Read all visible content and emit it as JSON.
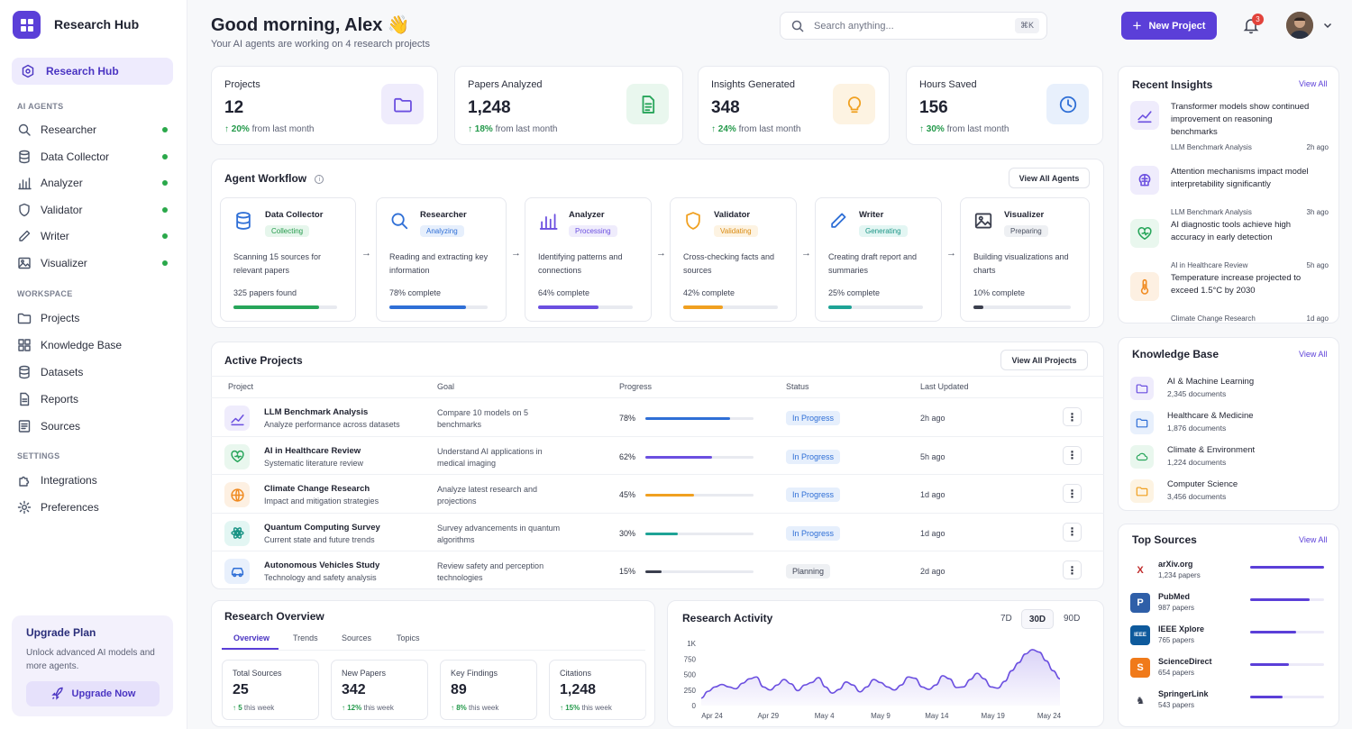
{
  "app": {
    "title": "Research Hub"
  },
  "sidebar": {
    "active": "Research Hub",
    "agents_section": "AI AGENTS",
    "agents": [
      {
        "label": "Researcher",
        "icon": "search-icon"
      },
      {
        "label": "Data Collector",
        "icon": "database-icon"
      },
      {
        "label": "Analyzer",
        "icon": "bar-chart-icon"
      },
      {
        "label": "Validator",
        "icon": "shield-icon"
      },
      {
        "label": "Writer",
        "icon": "pen-icon"
      },
      {
        "label": "Visualizer",
        "icon": "image-icon"
      }
    ],
    "workspace_section": "WORKSPACE",
    "workspace": [
      {
        "label": "Projects",
        "icon": "folder-icon"
      },
      {
        "label": "Knowledge Base",
        "icon": "grid-icon"
      },
      {
        "label": "Datasets",
        "icon": "database-icon"
      },
      {
        "label": "Reports",
        "icon": "file-icon"
      },
      {
        "label": "Sources",
        "icon": "list-icon"
      }
    ],
    "settings_section": "SETTINGS",
    "settings": [
      {
        "label": "Integrations",
        "icon": "puzzle-icon"
      },
      {
        "label": "Preferences",
        "icon": "gear-icon"
      }
    ],
    "upgrade": {
      "title": "Upgrade Plan",
      "desc": "Unlock advanced AI models and more agents.",
      "button": "Upgrade Now"
    }
  },
  "header": {
    "greeting": "Good morning, Alex 👋",
    "subtitle": "Your AI agents are working on 4 research projects",
    "search_placeholder": "Search anything...",
    "search_shortcut": "⌘K",
    "new_project": "New Project",
    "notifications": "3"
  },
  "stats": [
    {
      "label": "Projects",
      "value": "12",
      "change": "20%",
      "suffix": "from last month",
      "icon": "folder-icon",
      "color": "#6b4fe0",
      "bg": "#efecfc"
    },
    {
      "label": "Papers Analyzed",
      "value": "1,248",
      "change": "18%",
      "suffix": "from last month",
      "icon": "document-icon",
      "color": "#27a55a",
      "bg": "#e9f7ee"
    },
    {
      "label": "Insights Generated",
      "value": "348",
      "change": "24%",
      "suffix": "from last month",
      "icon": "lightbulb-icon",
      "color": "#f0a020",
      "bg": "#fdf3e2"
    },
    {
      "label": "Hours Saved",
      "value": "156",
      "change": "30%",
      "suffix": "from last month",
      "icon": "clock-icon",
      "color": "#2f6fd6",
      "bg": "#e8f0fc"
    }
  ],
  "workflow": {
    "title": "Agent Workflow",
    "view_all": "View All Agents",
    "agents": [
      {
        "name": "Data Collector",
        "status": "Collecting",
        "desc": "Scanning 15 sources for relevant papers",
        "progress_text": "325 papers found",
        "progress": 0.83,
        "color": "#27a55a",
        "pill_bg": "#e6f6ec",
        "pill_fg": "#23994a"
      },
      {
        "name": "Researcher",
        "status": "Analyzing",
        "desc": "Reading and extracting key information",
        "progress_text": "78% complete",
        "progress": 0.78,
        "color": "#2f6fd6",
        "pill_bg": "#e6effc",
        "pill_fg": "#2f6fd6"
      },
      {
        "name": "Analyzer",
        "status": "Processing",
        "desc": "Identifying patterns and connections",
        "progress_text": "64% complete",
        "progress": 0.64,
        "color": "#6b4fe0",
        "pill_bg": "#efecfc",
        "pill_fg": "#6b4fe0"
      },
      {
        "name": "Validator",
        "status": "Validating",
        "desc": "Cross-checking facts and sources",
        "progress_text": "42% complete",
        "progress": 0.42,
        "color": "#f0a020",
        "pill_bg": "#fdf3e2",
        "pill_fg": "#d98a10"
      },
      {
        "name": "Writer",
        "status": "Generating",
        "desc": "Creating draft report and summaries",
        "progress_text": "25% complete",
        "progress": 0.25,
        "color": "#1ea396",
        "pill_bg": "#e3f6f3",
        "pill_fg": "#1a9485"
      },
      {
        "name": "Visualizer",
        "status": "Preparing",
        "desc": "Building visualizations and charts",
        "progress_text": "10% complete",
        "progress": 0.1,
        "color": "#3b3f4e",
        "pill_bg": "#eef0f3",
        "pill_fg": "#4a5060"
      }
    ]
  },
  "projects": {
    "title": "Active Projects",
    "view_all": "View All Projects",
    "columns": [
      "Project",
      "Goal",
      "Progress",
      "Status",
      "Last Updated"
    ],
    "rows": [
      {
        "name": "LLM Benchmark Analysis",
        "sub": "Analyze performance across datasets",
        "goal": "Compare 10 models on 5 benchmarks",
        "pct": "78%",
        "progress": 0.78,
        "status": "In Progress",
        "updated": "2h ago",
        "color": "#2f6fd6",
        "icon_color": "#6b4fe0",
        "icon_bg": "#efecfc"
      },
      {
        "name": "AI in Healthcare Review",
        "sub": "Systematic literature review",
        "goal": "Understand AI applications in medical imaging",
        "pct": "62%",
        "progress": 0.62,
        "status": "In Progress",
        "updated": "5h ago",
        "color": "#6b4fe0",
        "icon_color": "#27a55a",
        "icon_bg": "#e9f7ee"
      },
      {
        "name": "Climate Change Research",
        "sub": "Impact and mitigation strategies",
        "goal": "Analyze latest research and projections",
        "pct": "45%",
        "progress": 0.45,
        "status": "In Progress",
        "updated": "1d ago",
        "color": "#f0a020",
        "icon_color": "#f08a20",
        "icon_bg": "#fdf0e2"
      },
      {
        "name": "Quantum Computing Survey",
        "sub": "Current state and future trends",
        "goal": "Survey advancements in quantum algorithms",
        "pct": "30%",
        "progress": 0.3,
        "status": "In Progress",
        "updated": "1d ago",
        "color": "#1ea396",
        "icon_color": "#1a9485",
        "icon_bg": "#e3f6f3"
      },
      {
        "name": "Autonomous Vehicles Study",
        "sub": "Technology and safety analysis",
        "goal": "Review safety and perception technologies",
        "pct": "15%",
        "progress": 0.15,
        "status": "Planning",
        "updated": "2d ago",
        "color": "#3b3f4e",
        "icon_color": "#2f6fd6",
        "icon_bg": "#e8f0fc"
      }
    ]
  },
  "overview": {
    "title": "Research Overview",
    "tabs": [
      "Overview",
      "Trends",
      "Sources",
      "Topics"
    ],
    "cards": [
      {
        "label": "Total Sources",
        "value": "25",
        "change": "5",
        "suffix": "this week"
      },
      {
        "label": "New Papers",
        "value": "342",
        "change": "12%",
        "suffix": "this week"
      },
      {
        "label": "Key Findings",
        "value": "89",
        "change": "8%",
        "suffix": "this week"
      },
      {
        "label": "Citations",
        "value": "1,248",
        "change": "15%",
        "suffix": "this week"
      }
    ]
  },
  "activity": {
    "title": "Research Activity",
    "ranges": [
      "7D",
      "30D",
      "90D"
    ],
    "active_range": "30D"
  },
  "chart_data": {
    "type": "area",
    "title": "Research Activity",
    "y_ticks": [
      "0",
      "250",
      "500",
      "750",
      "1K"
    ],
    "ylim": [
      0,
      1000
    ],
    "x_ticks": [
      "Apr 24",
      "Apr 29",
      "May 4",
      "May 9",
      "May 14",
      "May 19",
      "May 24"
    ],
    "series": [
      {
        "values": [
          120,
          230,
          300,
          340,
          300,
          270,
          360,
          430,
          460,
          300,
          250,
          330,
          420,
          350,
          240,
          330,
          370,
          450,
          300,
          200,
          260,
          380,
          330,
          220,
          300,
          420,
          370,
          300,
          250,
          330,
          460,
          440,
          300,
          260,
          330,
          480,
          430,
          290,
          300,
          420,
          520,
          430,
          300,
          280,
          390,
          560,
          690,
          830,
          900,
          860,
          720,
          560,
          430
        ]
      }
    ],
    "color": "#6b4fe0"
  },
  "insights": {
    "title": "Recent Insights",
    "view_all": "View All",
    "items": [
      {
        "text": "Transformer models show continued improvement on reasoning benchmarks",
        "source": "LLM Benchmark Analysis",
        "time": "2h ago",
        "icon": "trend-icon",
        "color": "#6b4fe0",
        "bg": "#efecfc"
      },
      {
        "text": "Attention mechanisms impact model interpretability significantly",
        "source": "LLM Benchmark Analysis",
        "time": "3h ago",
        "icon": "brain-icon",
        "color": "#6b4fe0",
        "bg": "#efecfc"
      },
      {
        "text": "AI diagnostic tools achieve high accuracy in early detection",
        "source": "AI in Healthcare Review",
        "time": "5h ago",
        "icon": "heart-icon",
        "color": "#27a55a",
        "bg": "#e9f7ee"
      },
      {
        "text": "Temperature increase projected to exceed 1.5°C by 2030",
        "source": "Climate Change Research",
        "time": "1d ago",
        "icon": "thermometer-icon",
        "color": "#f08a20",
        "bg": "#fdf0e2"
      }
    ]
  },
  "knowledge": {
    "title": "Knowledge Base",
    "view_all": "View All",
    "items": [
      {
        "name": "AI & Machine Learning",
        "count": "2,345 documents",
        "color": "#6b4fe0",
        "bg": "#efecfc"
      },
      {
        "name": "Healthcare & Medicine",
        "count": "1,876 documents",
        "color": "#2f6fd6",
        "bg": "#e8f0fc"
      },
      {
        "name": "Climate & Environment",
        "count": "1,224 documents",
        "color": "#27a55a",
        "bg": "#e9f7ee"
      },
      {
        "name": "Computer Science",
        "count": "3,456 documents",
        "color": "#f0a020",
        "bg": "#fdf3e2"
      }
    ]
  },
  "sources": {
    "title": "Top Sources",
    "view_all": "View All",
    "items": [
      {
        "name": "arXiv.org",
        "count": "1,234 papers",
        "share": 1.0,
        "glyph": "X",
        "fg": "#c02a2a",
        "bg": "#fff"
      },
      {
        "name": "PubMed",
        "count": "987 papers",
        "share": 0.8,
        "glyph": "P",
        "fg": "#fff",
        "bg": "#2f5fa8"
      },
      {
        "name": "IEEE Xplore",
        "count": "765 papers",
        "share": 0.62,
        "glyph": "IEEE",
        "fg": "#fff",
        "bg": "#0e5a9c"
      },
      {
        "name": "ScienceDirect",
        "count": "654 papers",
        "share": 0.53,
        "glyph": "S",
        "fg": "#fff",
        "bg": "#f07a1a"
      },
      {
        "name": "SpringerLink",
        "count": "543 papers",
        "share": 0.44,
        "glyph": "♞",
        "fg": "#3b3f4e",
        "bg": "#fff"
      }
    ]
  }
}
